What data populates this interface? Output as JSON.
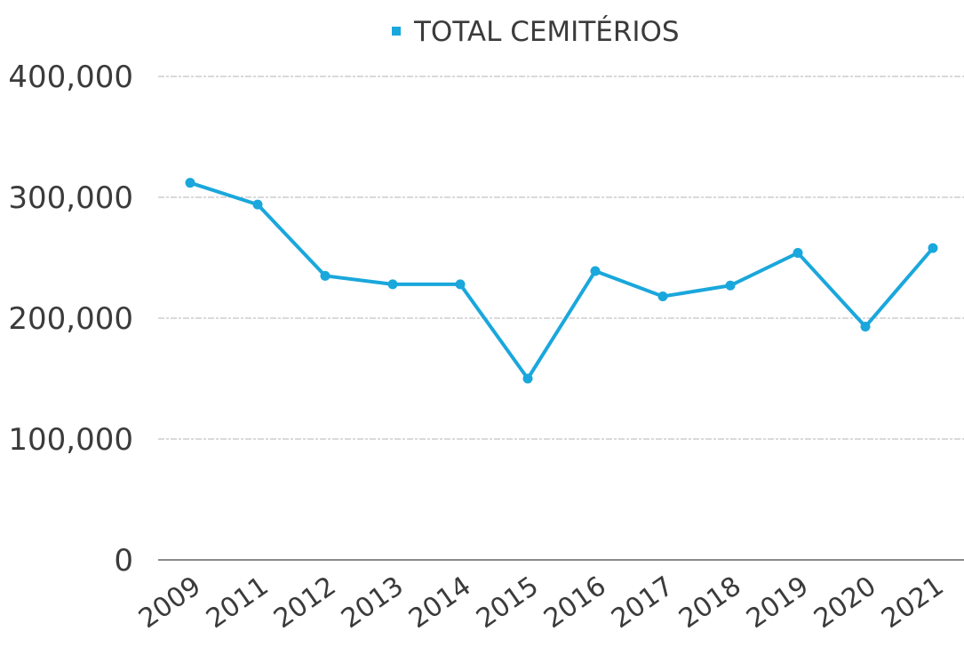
{
  "chart_data": {
    "type": "line",
    "title": "",
    "xlabel": "",
    "ylabel": "",
    "categories": [
      "2009",
      "2011",
      "2012",
      "2013",
      "2014",
      "2015",
      "2016",
      "2017",
      "2018",
      "2019",
      "2020",
      "2021"
    ],
    "series": [
      {
        "name": "TOTAL CEMITÉRIOS",
        "color": "#1aa7dc",
        "values": [
          312000,
          294000,
          235000,
          228000,
          228000,
          150000,
          239000,
          218000,
          227000,
          254000,
          193000,
          258000
        ]
      }
    ],
    "ylim": [
      0,
      400000
    ],
    "yticks": [
      0,
      100000,
      200000,
      300000,
      400000
    ],
    "ytick_labels": [
      "0",
      "100,000",
      "200,000",
      "300,000",
      "400,000"
    ],
    "grid": true,
    "legend_position": "top-center",
    "colors": {
      "series": "#1aa7dc",
      "text": "#3b3b3b",
      "grid": "#c4c4c4",
      "axis": "#8a8a8a"
    }
  }
}
